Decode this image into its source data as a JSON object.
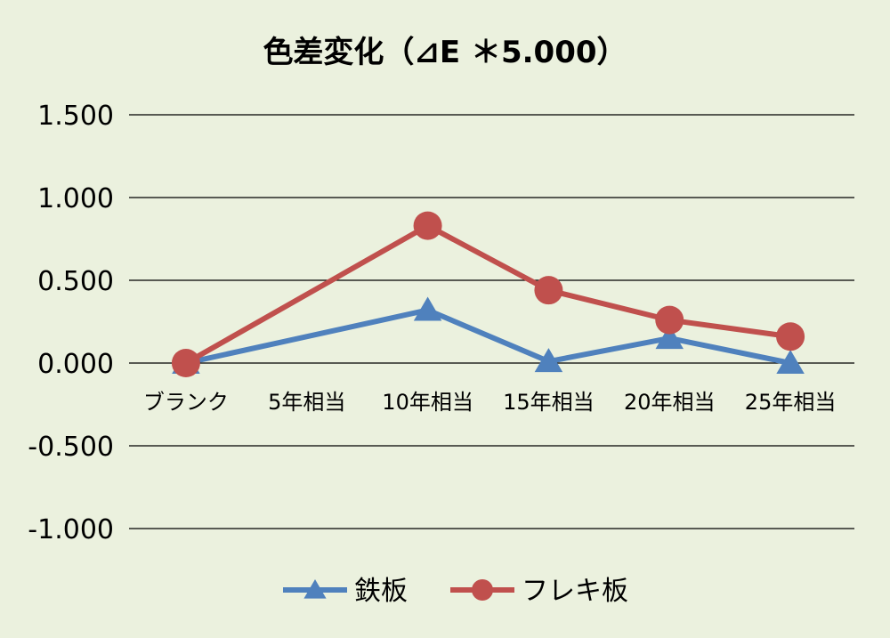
{
  "chart_data": {
    "type": "line",
    "title": "色差変化（⊿E ＊5.000）",
    "categories": [
      "ブランク",
      "5年相当",
      "10年相当",
      "15年相当",
      "20年相当",
      "25年相当"
    ],
    "ylim": [
      -1.0,
      1.5
    ],
    "yticks": [
      1.5,
      1.0,
      0.5,
      0.0,
      -0.5,
      -1.0
    ],
    "ytick_labels": [
      "1.500",
      "1.000",
      "0.500",
      "0.000",
      "-0.500",
      "-1.000"
    ],
    "grid": true,
    "legend_position": "bottom",
    "series": [
      {
        "name": "鉄板",
        "values": [
          0.0,
          null,
          0.32,
          0.01,
          0.15,
          0.0
        ],
        "color": "#4f81bd",
        "marker": "triangle"
      },
      {
        "name": "フレキ板",
        "values": [
          0.0,
          null,
          0.83,
          0.44,
          0.26,
          0.16
        ],
        "color": "#c0504d",
        "marker": "circle"
      }
    ]
  },
  "colors": {
    "background": "#ebf1de",
    "grid": "#000000",
    "text": "#000000"
  }
}
